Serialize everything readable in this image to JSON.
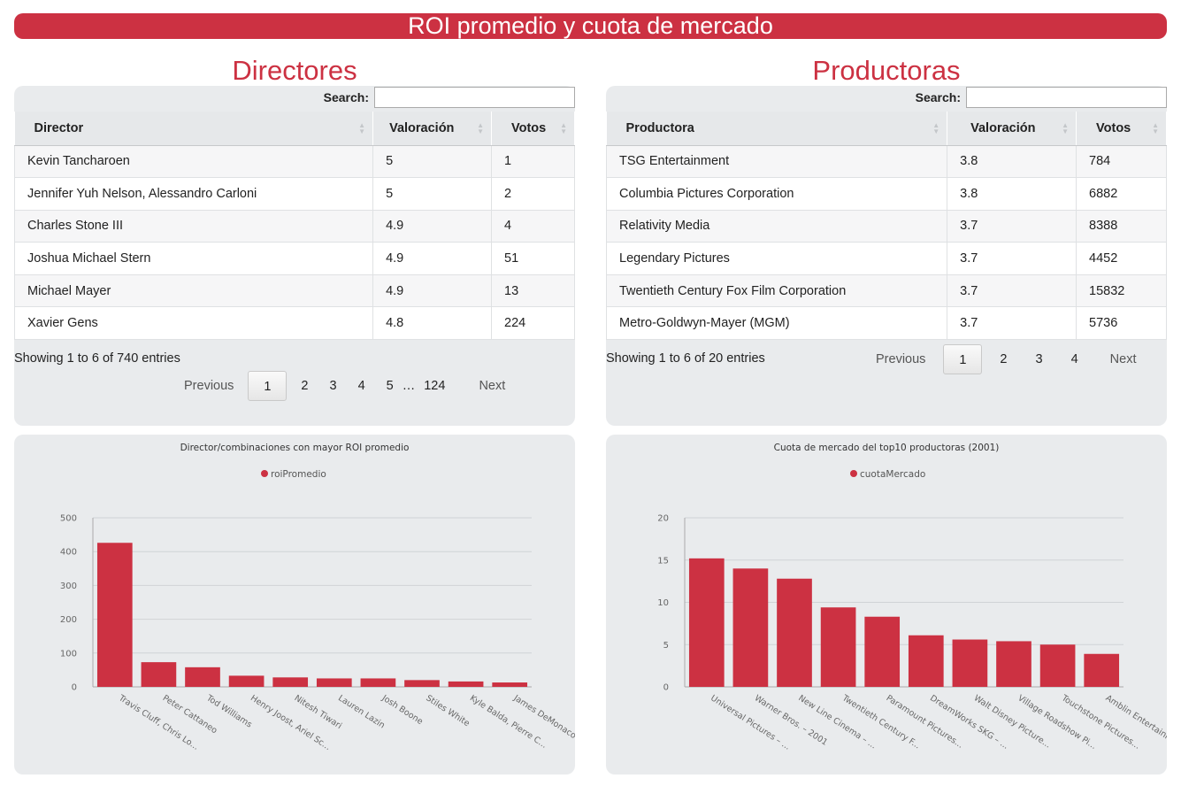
{
  "banner_title": "ROI promedio y cuota de mercado",
  "left": {
    "title": "Directores",
    "search_label": "Search:",
    "columns": [
      "Director",
      "Valoración",
      "Votos"
    ],
    "rows": [
      [
        "Kevin Tancharoen",
        "5",
        "1"
      ],
      [
        "Jennifer Yuh Nelson, Alessandro Carloni",
        "5",
        "2"
      ],
      [
        "Charles Stone III",
        "4.9",
        "4"
      ],
      [
        "Joshua Michael Stern",
        "4.9",
        "51"
      ],
      [
        "Michael Mayer",
        "4.9",
        "13"
      ],
      [
        "Xavier Gens",
        "4.8",
        "224"
      ]
    ],
    "info": "Showing 1 to 6 of 740 entries",
    "pager": {
      "previous": "Previous",
      "pages": [
        "1",
        "2",
        "3",
        "4",
        "5",
        "…",
        "124"
      ],
      "current": "1",
      "next": "Next"
    }
  },
  "right": {
    "title": "Productoras",
    "search_label": "Search:",
    "columns": [
      "Productora",
      "Valoración",
      "Votos"
    ],
    "rows": [
      [
        "TSG Entertainment",
        "3.8",
        "784"
      ],
      [
        "Columbia Pictures Corporation",
        "3.8",
        "6882"
      ],
      [
        "Relativity Media",
        "3.7",
        "8388"
      ],
      [
        "Legendary Pictures",
        "3.7",
        "4452"
      ],
      [
        "Twentieth Century Fox Film Corporation",
        "3.7",
        "15832"
      ],
      [
        "Metro-Goldwyn-Mayer (MGM)",
        "3.7",
        "5736"
      ]
    ],
    "info": "Showing 1 to 6 of 20 entries",
    "pager": {
      "previous": "Previous",
      "pages": [
        "1",
        "2",
        "3",
        "4"
      ],
      "current": "1",
      "next": "Next"
    }
  },
  "colors": {
    "accent": "#cc3142",
    "panel": "#e9ebed"
  },
  "chart_data": [
    {
      "type": "bar",
      "title": "Director/combinaciones con mayor ROI promedio",
      "legend_position": "top",
      "grid": true,
      "categories": [
        "Travis Cluff, Chris Lo...",
        "Peter Cattaneo",
        "Tod Williams",
        "Henry Joost, Ariel Sc...",
        "Nitesh Tiwari",
        "Lauren Lazin",
        "Josh Boone",
        "Stiles White",
        "Kyle Balda, Pierre C...",
        "James DeMonaco"
      ],
      "series": [
        {
          "name": "roiPromedio",
          "color": "#cc3142",
          "values": [
            426,
            73,
            58,
            33,
            28,
            25,
            25,
            20,
            16,
            13
          ]
        }
      ],
      "ylim": [
        0,
        500
      ],
      "yticks": [
        0,
        100,
        200,
        300,
        400,
        500
      ]
    },
    {
      "type": "bar",
      "title": "Cuota de mercado del top10 productoras (2001)",
      "legend_position": "top",
      "grid": true,
      "categories": [
        "Universal Pictures – ...",
        "Warner Bros. – 2001",
        "New Line Cinema – ...",
        "Twentieth Century F...",
        "Paramount Pictures...",
        "DreamWorks SKG – ...",
        "Walt Disney Picture...",
        "Village Roadshow Pi...",
        "Touchstone Pictures...",
        "Amblin Entertainme..."
      ],
      "series": [
        {
          "name": "cuotaMercado",
          "color": "#cc3142",
          "values": [
            15.2,
            14.0,
            12.8,
            9.4,
            8.3,
            6.1,
            5.6,
            5.4,
            5.0,
            3.9
          ]
        }
      ],
      "ylim": [
        0,
        20
      ],
      "yticks": [
        0,
        5,
        10,
        15,
        20
      ]
    }
  ]
}
